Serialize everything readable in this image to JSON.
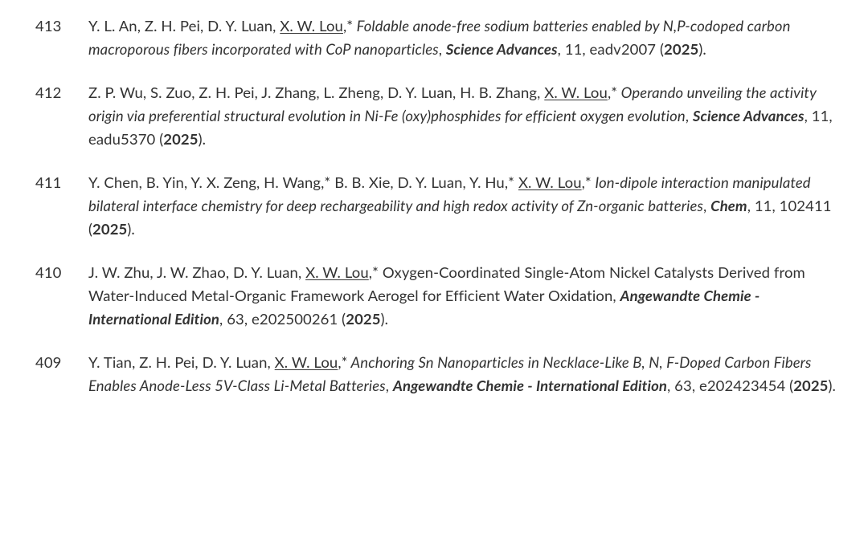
{
  "colors": {
    "text": "#333333",
    "background": "#ffffff"
  },
  "typography": {
    "font_family": "Lato, Segoe UI, Helvetica Neue, Arial, sans-serif",
    "font_size_pt": 14,
    "line_height": 1.55
  },
  "publications": [
    {
      "number": "413",
      "authors_pre": "Y. L. An, Z. H. Pei, D. Y. Luan, ",
      "underlined_author": "X. W. Lou",
      "authors_post": ",*",
      "title": " Foldable anode-free sodium batteries enabled by N,P-codoped carbon macroporous fibers incorporated with CoP nanoparticles",
      "journal": "Science Advances",
      "volume": "11",
      "article": "eadv2007",
      "year": "2025",
      "title_style": "italic"
    },
    {
      "number": "412",
      "authors_pre": "Z. P. Wu, S. Zuo, Z. H. Pei, J. Zhang, L. Zheng, D. Y. Luan, H. B. Zhang, ",
      "underlined_author": "X. W. Lou",
      "authors_post": ",*",
      "title": " Operando unveiling the activity origin via preferential structural evolution in Ni-Fe (oxy)phosphides for efficient oxygen evolution",
      "journal": "Science Advances",
      "volume": "11",
      "article": "eadu5370",
      "year": "2025",
      "title_style": "italic"
    },
    {
      "number": "411",
      "authors_pre": "Y. Chen, B. Yin, Y. X. Zeng, H. Wang,* B. B. Xie, D. Y. Luan, Y. Hu,* ",
      "underlined_author": "X. W. Lou",
      "authors_post": ",*",
      "title": " Ion-dipole interaction manipulated bilateral interface chemistry for deep rechargeability and high redox activity of Zn-organic batteries",
      "journal": "Chem",
      "volume": "11",
      "article": "102411",
      "year": "2025",
      "title_style": "italic"
    },
    {
      "number": "410",
      "authors_pre": "J. W. Zhu, J. W. Zhao, D. Y. Luan, ",
      "underlined_author": "X. W. Lou",
      "authors_post": ",*",
      "title": " Oxygen-Coordinated Single-Atom Nickel Catalysts Derived from Water-Induced Metal-Organic Framework Aerogel for Efficient Water Oxidation",
      "journal": "Angewandte Chemie - International Edition",
      "volume": "63",
      "article": "e202500261",
      "year": "2025",
      "title_style": "normal"
    },
    {
      "number": "409",
      "authors_pre": "Y. Tian, Z. H. Pei, D. Y. Luan, ",
      "underlined_author": "X. W. Lou",
      "authors_post": ",*",
      "title": " Anchoring Sn Nanoparticles in Necklace‑Like B, N, F‑Doped Carbon Fibers Enables Anode‑Less 5V‑Class Li‑Metal Batteries",
      "journal": "Angewandte Chemie - International Edition",
      "volume": "63",
      "article": "e202423454",
      "year": "2025",
      "title_style": "italic"
    }
  ]
}
